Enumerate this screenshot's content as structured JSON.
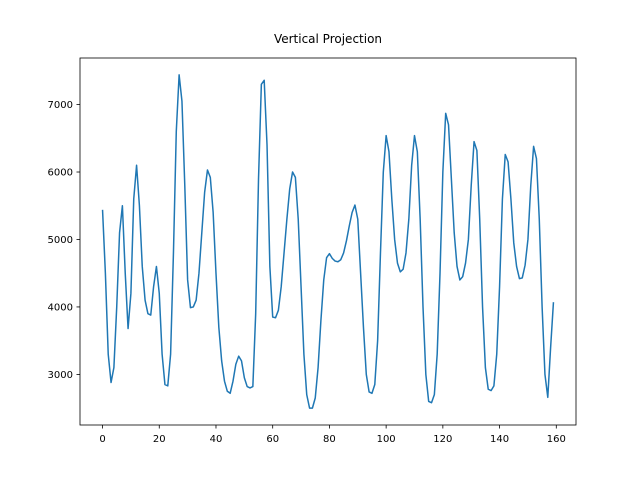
{
  "chart_data": {
    "type": "line",
    "title": "Vertical Projection",
    "x": [
      0,
      1,
      2,
      3,
      4,
      5,
      6,
      7,
      8,
      9,
      10,
      11,
      12,
      13,
      14,
      15,
      16,
      17,
      18,
      19,
      20,
      21,
      22,
      23,
      24,
      25,
      26,
      27,
      28,
      29,
      30,
      31,
      32,
      33,
      34,
      35,
      36,
      37,
      38,
      39,
      40,
      41,
      42,
      43,
      44,
      45,
      46,
      47,
      48,
      49,
      50,
      51,
      52,
      53,
      54,
      55,
      56,
      57,
      58,
      59,
      60,
      61,
      62,
      63,
      64,
      65,
      66,
      67,
      68,
      69,
      70,
      71,
      72,
      73,
      74,
      75,
      76,
      77,
      78,
      79,
      80,
      81,
      82,
      83,
      84,
      85,
      86,
      87,
      88,
      89,
      90,
      91,
      92,
      93,
      94,
      95,
      96,
      97,
      98,
      99,
      100,
      101,
      102,
      103,
      104,
      105,
      106,
      107,
      108,
      109,
      110,
      111,
      112,
      113,
      114,
      115,
      116,
      117,
      118,
      119,
      120,
      121,
      122,
      123,
      124,
      125,
      126,
      127,
      128,
      129,
      130,
      131,
      132,
      133,
      134,
      135,
      136,
      137,
      138,
      139,
      140,
      141,
      142,
      143,
      144,
      145,
      146,
      147,
      148,
      149,
      150,
      151,
      152,
      153,
      154,
      155,
      156,
      157,
      158,
      159
    ],
    "series": [
      {
        "color": "#1f77b4",
        "values": [
          5440,
          4500,
          3300,
          2880,
          3100,
          4000,
          5100,
          5500,
          4500,
          3680,
          4200,
          5600,
          6100,
          5500,
          4600,
          4100,
          3900,
          3880,
          4300,
          4600,
          4200,
          3300,
          2850,
          2830,
          3300,
          4800,
          6600,
          7440,
          7050,
          5800,
          4400,
          3990,
          4000,
          4100,
          4500,
          5100,
          5700,
          6030,
          5920,
          5400,
          4500,
          3700,
          3200,
          2900,
          2750,
          2720,
          2900,
          3150,
          3270,
          3200,
          2950,
          2820,
          2800,
          2820,
          3900,
          5900,
          7300,
          7360,
          6400,
          4600,
          3850,
          3840,
          3950,
          4300,
          4800,
          5300,
          5750,
          6000,
          5920,
          5300,
          4300,
          3300,
          2700,
          2500,
          2500,
          2650,
          3100,
          3800,
          4400,
          4730,
          4790,
          4720,
          4680,
          4670,
          4700,
          4800,
          4980,
          5200,
          5400,
          5510,
          5300,
          4500,
          3700,
          3000,
          2740,
          2720,
          2850,
          3500,
          4800,
          6000,
          6540,
          6300,
          5600,
          5000,
          4650,
          4520,
          4560,
          4800,
          5300,
          6100,
          6540,
          6300,
          5300,
          4000,
          3000,
          2600,
          2580,
          2700,
          3300,
          4500,
          6000,
          6870,
          6700,
          5900,
          5100,
          4600,
          4400,
          4450,
          4650,
          5000,
          5800,
          6450,
          6320,
          5300,
          4000,
          3100,
          2780,
          2760,
          2830,
          3300,
          4300,
          5600,
          6260,
          6150,
          5600,
          4950,
          4600,
          4420,
          4430,
          4620,
          5000,
          5800,
          6380,
          6200,
          5300,
          4000,
          3000,
          2660,
          3400,
          4070
        ]
      }
    ],
    "xlim": [
      -7.95,
      166.95
    ],
    "xticks": [
      0,
      20,
      40,
      60,
      80,
      100,
      120,
      140,
      160
    ],
    "ylim": [
      2250,
      7690
    ],
    "yticks": [
      3000,
      4000,
      5000,
      6000,
      7000
    ]
  }
}
